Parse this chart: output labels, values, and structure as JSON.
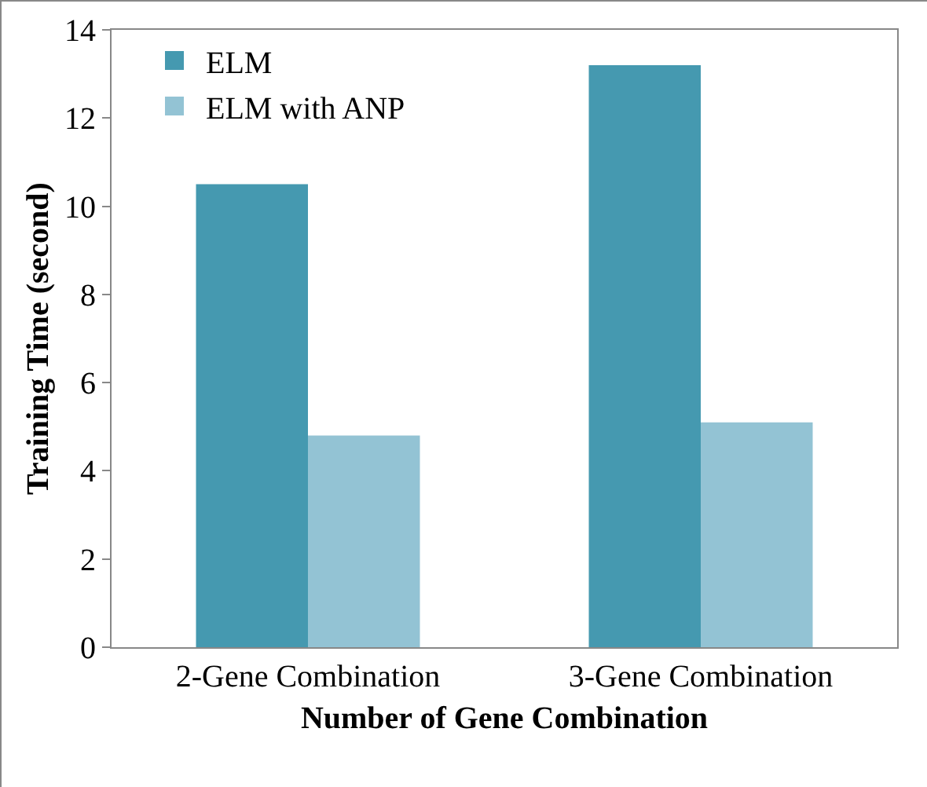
{
  "chart_data": {
    "type": "bar",
    "xlabel": "Number of Gene Combination",
    "ylabel": "Training Time (second)",
    "categories": [
      "2-Gene Combination",
      "3-Gene Combination"
    ],
    "series": [
      {
        "name": "ELM",
        "color": "#4599b0",
        "values": [
          10.5,
          13.2
        ]
      },
      {
        "name": "ELM with ANP",
        "color": "#93c3d4",
        "values": [
          4.8,
          5.1
        ]
      }
    ],
    "ylim": [
      0,
      14
    ],
    "yticks": [
      0,
      2,
      4,
      6,
      8,
      10,
      12,
      14
    ],
    "grid": false,
    "legend": "top left"
  }
}
